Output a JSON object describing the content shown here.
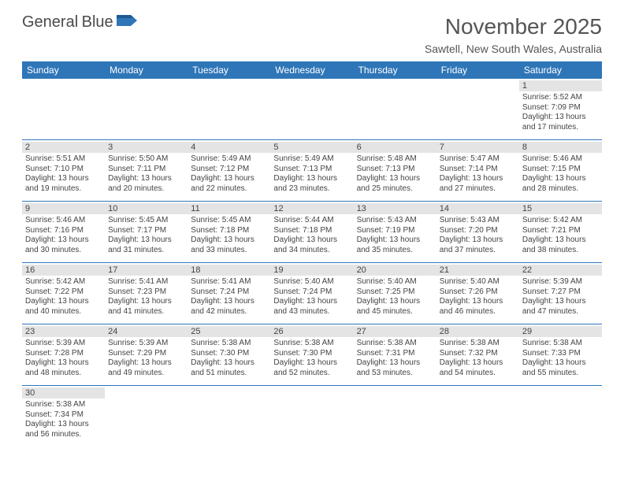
{
  "logo": {
    "text1": "General",
    "text2": "Blue",
    "flag_color": "#2f76b8",
    "text1_color": "#4a4a4a"
  },
  "title": "November 2025",
  "subtitle": "Sawtell, New South Wales, Australia",
  "colors": {
    "header_bg": "#2f76b8",
    "border": "#2f76b8",
    "daybar_bg": "#e4e4e4",
    "text": "#444"
  },
  "weekdays": [
    "Sunday",
    "Monday",
    "Tuesday",
    "Wednesday",
    "Thursday",
    "Friday",
    "Saturday"
  ],
  "grid": [
    [
      null,
      null,
      null,
      null,
      null,
      null,
      {
        "day": "1",
        "sunrise": "Sunrise: 5:52 AM",
        "sunset": "Sunset: 7:09 PM",
        "dl1": "Daylight: 13 hours",
        "dl2": "and 17 minutes."
      }
    ],
    [
      {
        "day": "2",
        "sunrise": "Sunrise: 5:51 AM",
        "sunset": "Sunset: 7:10 PM",
        "dl1": "Daylight: 13 hours",
        "dl2": "and 19 minutes."
      },
      {
        "day": "3",
        "sunrise": "Sunrise: 5:50 AM",
        "sunset": "Sunset: 7:11 PM",
        "dl1": "Daylight: 13 hours",
        "dl2": "and 20 minutes."
      },
      {
        "day": "4",
        "sunrise": "Sunrise: 5:49 AM",
        "sunset": "Sunset: 7:12 PM",
        "dl1": "Daylight: 13 hours",
        "dl2": "and 22 minutes."
      },
      {
        "day": "5",
        "sunrise": "Sunrise: 5:49 AM",
        "sunset": "Sunset: 7:13 PM",
        "dl1": "Daylight: 13 hours",
        "dl2": "and 23 minutes."
      },
      {
        "day": "6",
        "sunrise": "Sunrise: 5:48 AM",
        "sunset": "Sunset: 7:13 PM",
        "dl1": "Daylight: 13 hours",
        "dl2": "and 25 minutes."
      },
      {
        "day": "7",
        "sunrise": "Sunrise: 5:47 AM",
        "sunset": "Sunset: 7:14 PM",
        "dl1": "Daylight: 13 hours",
        "dl2": "and 27 minutes."
      },
      {
        "day": "8",
        "sunrise": "Sunrise: 5:46 AM",
        "sunset": "Sunset: 7:15 PM",
        "dl1": "Daylight: 13 hours",
        "dl2": "and 28 minutes."
      }
    ],
    [
      {
        "day": "9",
        "sunrise": "Sunrise: 5:46 AM",
        "sunset": "Sunset: 7:16 PM",
        "dl1": "Daylight: 13 hours",
        "dl2": "and 30 minutes."
      },
      {
        "day": "10",
        "sunrise": "Sunrise: 5:45 AM",
        "sunset": "Sunset: 7:17 PM",
        "dl1": "Daylight: 13 hours",
        "dl2": "and 31 minutes."
      },
      {
        "day": "11",
        "sunrise": "Sunrise: 5:45 AM",
        "sunset": "Sunset: 7:18 PM",
        "dl1": "Daylight: 13 hours",
        "dl2": "and 33 minutes."
      },
      {
        "day": "12",
        "sunrise": "Sunrise: 5:44 AM",
        "sunset": "Sunset: 7:18 PM",
        "dl1": "Daylight: 13 hours",
        "dl2": "and 34 minutes."
      },
      {
        "day": "13",
        "sunrise": "Sunrise: 5:43 AM",
        "sunset": "Sunset: 7:19 PM",
        "dl1": "Daylight: 13 hours",
        "dl2": "and 35 minutes."
      },
      {
        "day": "14",
        "sunrise": "Sunrise: 5:43 AM",
        "sunset": "Sunset: 7:20 PM",
        "dl1": "Daylight: 13 hours",
        "dl2": "and 37 minutes."
      },
      {
        "day": "15",
        "sunrise": "Sunrise: 5:42 AM",
        "sunset": "Sunset: 7:21 PM",
        "dl1": "Daylight: 13 hours",
        "dl2": "and 38 minutes."
      }
    ],
    [
      {
        "day": "16",
        "sunrise": "Sunrise: 5:42 AM",
        "sunset": "Sunset: 7:22 PM",
        "dl1": "Daylight: 13 hours",
        "dl2": "and 40 minutes."
      },
      {
        "day": "17",
        "sunrise": "Sunrise: 5:41 AM",
        "sunset": "Sunset: 7:23 PM",
        "dl1": "Daylight: 13 hours",
        "dl2": "and 41 minutes."
      },
      {
        "day": "18",
        "sunrise": "Sunrise: 5:41 AM",
        "sunset": "Sunset: 7:24 PM",
        "dl1": "Daylight: 13 hours",
        "dl2": "and 42 minutes."
      },
      {
        "day": "19",
        "sunrise": "Sunrise: 5:40 AM",
        "sunset": "Sunset: 7:24 PM",
        "dl1": "Daylight: 13 hours",
        "dl2": "and 43 minutes."
      },
      {
        "day": "20",
        "sunrise": "Sunrise: 5:40 AM",
        "sunset": "Sunset: 7:25 PM",
        "dl1": "Daylight: 13 hours",
        "dl2": "and 45 minutes."
      },
      {
        "day": "21",
        "sunrise": "Sunrise: 5:40 AM",
        "sunset": "Sunset: 7:26 PM",
        "dl1": "Daylight: 13 hours",
        "dl2": "and 46 minutes."
      },
      {
        "day": "22",
        "sunrise": "Sunrise: 5:39 AM",
        "sunset": "Sunset: 7:27 PM",
        "dl1": "Daylight: 13 hours",
        "dl2": "and 47 minutes."
      }
    ],
    [
      {
        "day": "23",
        "sunrise": "Sunrise: 5:39 AM",
        "sunset": "Sunset: 7:28 PM",
        "dl1": "Daylight: 13 hours",
        "dl2": "and 48 minutes."
      },
      {
        "day": "24",
        "sunrise": "Sunrise: 5:39 AM",
        "sunset": "Sunset: 7:29 PM",
        "dl1": "Daylight: 13 hours",
        "dl2": "and 49 minutes."
      },
      {
        "day": "25",
        "sunrise": "Sunrise: 5:38 AM",
        "sunset": "Sunset: 7:30 PM",
        "dl1": "Daylight: 13 hours",
        "dl2": "and 51 minutes."
      },
      {
        "day": "26",
        "sunrise": "Sunrise: 5:38 AM",
        "sunset": "Sunset: 7:30 PM",
        "dl1": "Daylight: 13 hours",
        "dl2": "and 52 minutes."
      },
      {
        "day": "27",
        "sunrise": "Sunrise: 5:38 AM",
        "sunset": "Sunset: 7:31 PM",
        "dl1": "Daylight: 13 hours",
        "dl2": "and 53 minutes."
      },
      {
        "day": "28",
        "sunrise": "Sunrise: 5:38 AM",
        "sunset": "Sunset: 7:32 PM",
        "dl1": "Daylight: 13 hours",
        "dl2": "and 54 minutes."
      },
      {
        "day": "29",
        "sunrise": "Sunrise: 5:38 AM",
        "sunset": "Sunset: 7:33 PM",
        "dl1": "Daylight: 13 hours",
        "dl2": "and 55 minutes."
      }
    ],
    [
      {
        "day": "30",
        "sunrise": "Sunrise: 5:38 AM",
        "sunset": "Sunset: 7:34 PM",
        "dl1": "Daylight: 13 hours",
        "dl2": "and 56 minutes."
      },
      null,
      null,
      null,
      null,
      null,
      null
    ]
  ]
}
